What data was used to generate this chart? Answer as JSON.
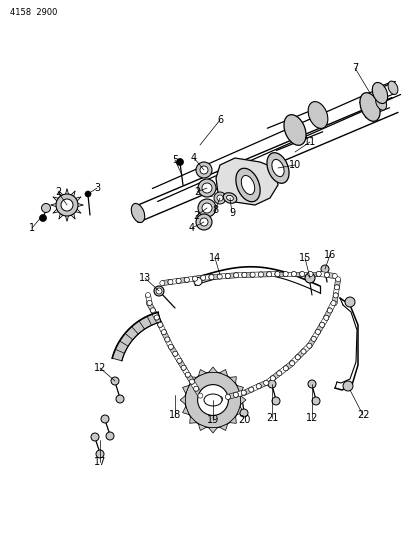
{
  "part_number": "4158 2900",
  "background_color": "#ffffff",
  "fig_width": 4.08,
  "fig_height": 5.33,
  "dpi": 100,
  "shaft_color": "#e8e8e8",
  "line_color": "#000000",
  "part_gray": "#c8c8c8",
  "part_dark": "#888888"
}
